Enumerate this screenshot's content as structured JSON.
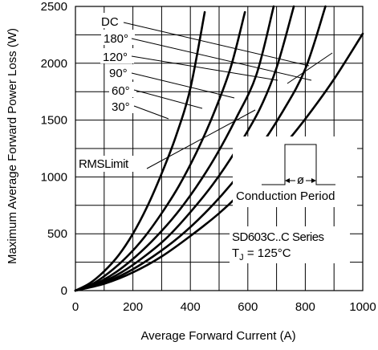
{
  "chart_data": {
    "type": "line",
    "xlabel": "Average Forward Current (A)",
    "ylabel": "Maximum Average Forward Power Loss (W)",
    "xlim": [
      0,
      1000
    ],
    "ylim": [
      0,
      2500
    ],
    "xticks": [
      0,
      200,
      400,
      600,
      800,
      1000
    ],
    "yticks": [
      0,
      500,
      1000,
      1500,
      2000,
      2500
    ],
    "xtick_labels": [
      "0",
      "200",
      "400",
      "600",
      "800",
      "1000"
    ],
    "ytick_labels": [
      "0",
      "500",
      "1000",
      "1500",
      "2000",
      "2500"
    ],
    "grid": true,
    "series": [
      {
        "name": "30°",
        "x": [
          0,
          50,
          100,
          150,
          200,
          250,
          300,
          350,
          400,
          450
        ],
        "y": [
          0,
          65,
          170,
          310,
          500,
          740,
          1030,
          1360,
          1780,
          2450
        ]
      },
      {
        "name": "60°",
        "x": [
          0,
          60,
          120,
          180,
          240,
          300,
          360,
          420,
          480,
          540,
          590
        ],
        "y": [
          0,
          60,
          165,
          300,
          470,
          680,
          920,
          1210,
          1550,
          1960,
          2450
        ]
      },
      {
        "name": "90°",
        "x": [
          0,
          70,
          140,
          210,
          280,
          350,
          420,
          490,
          560,
          630,
          690
        ],
        "y": [
          0,
          60,
          160,
          300,
          470,
          670,
          910,
          1190,
          1520,
          1900,
          2500
        ]
      },
      {
        "name": "120°",
        "x": [
          0,
          80,
          160,
          240,
          320,
          400,
          480,
          560,
          640,
          700,
          760
        ],
        "y": [
          0,
          60,
          160,
          300,
          470,
          690,
          940,
          1240,
          1590,
          1960,
          2500
        ]
      },
      {
        "name": "180°",
        "x": [
          0,
          90,
          180,
          270,
          360,
          450,
          540,
          630,
          720,
          800,
          870
        ],
        "y": [
          0,
          60,
          160,
          300,
          470,
          680,
          930,
          1220,
          1570,
          1950,
          2500
        ]
      },
      {
        "name": "DC",
        "x": [
          0,
          100,
          200,
          300,
          400,
          500,
          600,
          700,
          800,
          900,
          1000
        ],
        "y": [
          0,
          60,
          160,
          300,
          480,
          680,
          920,
          1200,
          1510,
          1860,
          2260
        ]
      }
    ],
    "annotations": {
      "legend_labels": [
        "DC",
        "180°",
        "120°",
        "90°",
        "60°",
        "30°"
      ],
      "rms_limit": "RMSLimit",
      "conduction_period": "Conduction Period",
      "phi_symbol": "ø",
      "series_title": "SD603C..C Series",
      "tj_prefix": "T",
      "tj_subscript": "J",
      "tj_value": "= 125°C"
    }
  }
}
